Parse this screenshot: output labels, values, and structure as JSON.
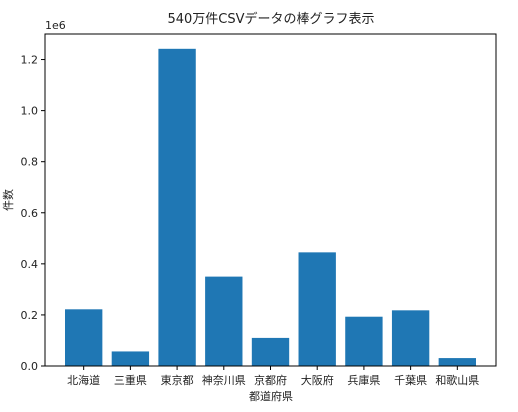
{
  "chart_data": {
    "type": "bar",
    "title": "540万件CSVデータの棒グラフ表示",
    "xlabel": "都道府県",
    "ylabel": "件数",
    "y_offset_label": "1e6",
    "categories": [
      "北海道",
      "三重県",
      "東京都",
      "神奈川県",
      "京都府",
      "大阪府",
      "兵庫県",
      "千葉県",
      "和歌山県"
    ],
    "values": [
      222000,
      57000,
      1242000,
      350000,
      110000,
      445000,
      193000,
      218000,
      31000
    ],
    "ylim": [
      0,
      1300000
    ],
    "yticks": [
      0,
      200000,
      400000,
      600000,
      800000,
      1000000,
      1200000
    ],
    "ytick_labels": [
      "0.0",
      "0.2",
      "0.4",
      "0.6",
      "0.8",
      "1.0",
      "1.2"
    ],
    "bar_color": "#1f77b4",
    "grid": false,
    "legend": "none"
  }
}
